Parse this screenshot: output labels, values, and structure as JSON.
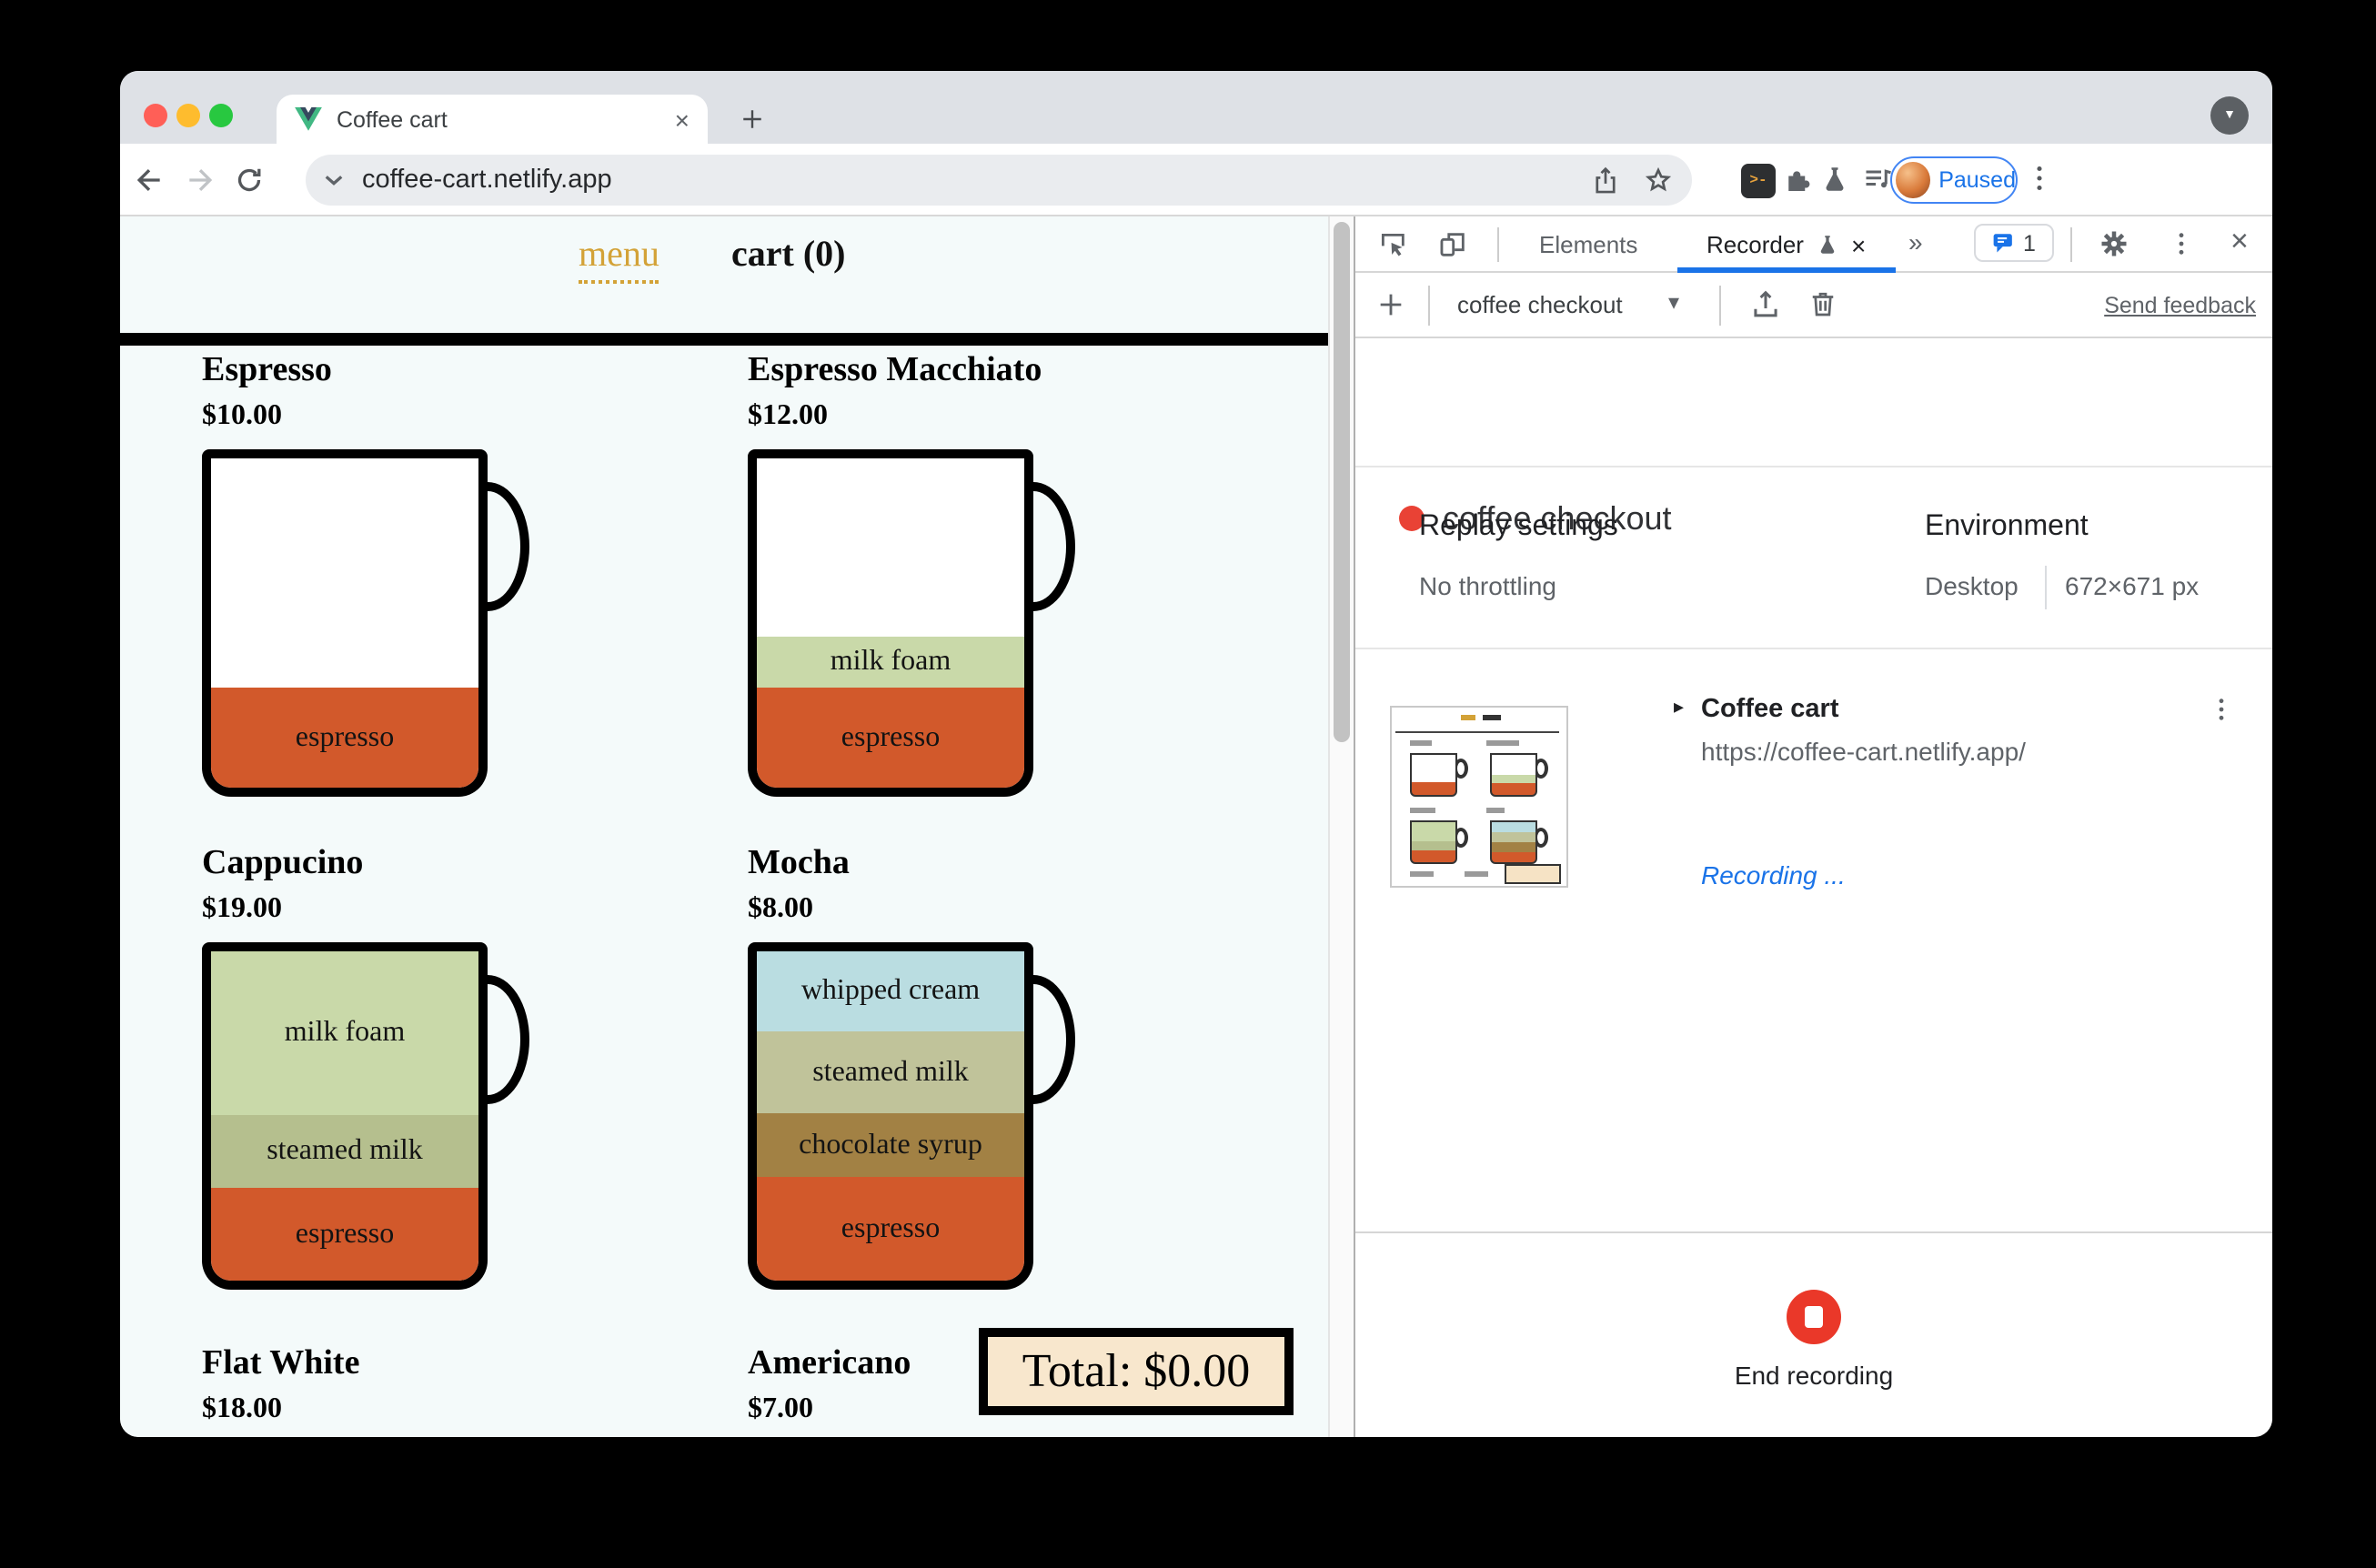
{
  "browser": {
    "tab_title": "Coffee cart",
    "url": "coffee-cart.netlify.app",
    "profile_label": "Paused"
  },
  "icons": {
    "close_glyph": "×",
    "dropdown_glyph": "▾",
    "expander_glyph": "▸",
    "more_glyph": "»",
    "caret_glyph": "▼",
    "plus_glyph": "+"
  },
  "app": {
    "nav_menu": "menu",
    "nav_cart": "cart (0)",
    "total": "Total: $0.00",
    "products": [
      {
        "name": "Espresso",
        "price": "$10.00",
        "layers": [
          {
            "label": "espresso",
            "color": "#d2592b",
            "h": 55
          }
        ]
      },
      {
        "name": "Espresso Macchiato",
        "price": "$12.00",
        "layers": [
          {
            "label": "milk foam",
            "color": "#c9d9a9",
            "h": 28
          },
          {
            "label": "espresso",
            "color": "#d2592b",
            "h": 55
          }
        ]
      },
      {
        "name": "Cappucino",
        "price": "$19.00",
        "layers": [
          {
            "label": "milk foam",
            "color": "#c9d9a9",
            "h": 90
          },
          {
            "label": "steamed milk",
            "color": "#b5bf8e",
            "h": 40
          },
          {
            "label": "espresso",
            "color": "#d2592b",
            "h": 51
          }
        ]
      },
      {
        "name": "Mocha",
        "price": "$8.00",
        "layers": [
          {
            "label": "whipped cream",
            "color": "#badde1",
            "h": 44
          },
          {
            "label": "steamed milk",
            "color": "#c0c39a",
            "h": 45
          },
          {
            "label": "chocolate syrup",
            "color": "#a28144",
            "h": 35
          },
          {
            "label": "espresso",
            "color": "#d2592b",
            "h": 57
          }
        ]
      }
    ],
    "partial_products": [
      {
        "name": "Flat White",
        "price": "$18.00"
      },
      {
        "name": "Americano",
        "price": "$7.00"
      }
    ]
  },
  "devtools": {
    "tabs": {
      "elements": "Elements",
      "recorder": "Recorder",
      "more": "»"
    },
    "issues_count": "1",
    "toolbar": {
      "recording_select": "coffee checkout",
      "send_feedback": "Send feedback"
    },
    "heading": "coffee checkout",
    "replay_heading": "Replay settings",
    "replay_value": "No throttling",
    "environment_heading": "Environment",
    "environment_device": "Desktop",
    "environment_size": "672×671 px",
    "step": {
      "title": "Coffee cart",
      "url": "https://coffee-cart.netlify.app/",
      "status": "Recording ..."
    },
    "end_recording": "End recording"
  },
  "colors": {
    "accent_blue": "#1a73e8",
    "record_red": "#ea3829",
    "espresso": "#d2592b",
    "milk_foam": "#c9d9a9",
    "steamed_milk": "#b5bf8e",
    "whipped_cream": "#badde1",
    "chocolate_syrup": "#a28144",
    "menu_gold": "#d3a237",
    "total_bg": "#f8e7cd",
    "tabstrip_bg": "#dee1e6"
  }
}
